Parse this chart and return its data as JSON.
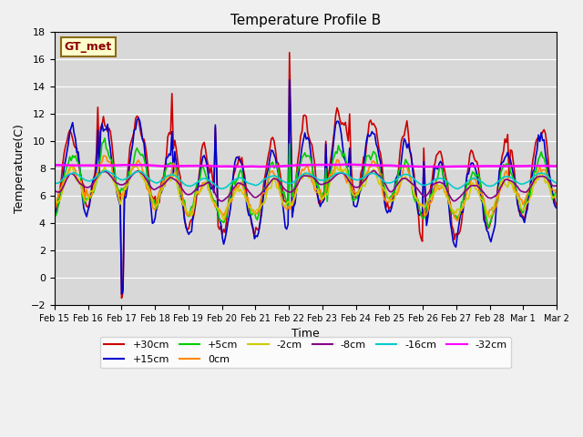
{
  "title": "Temperature Profile B",
  "xlabel": "Time",
  "ylabel": "Temperature(C)",
  "ylim": [
    -2,
    18
  ],
  "annotation": "GT_met",
  "background_color": "#d8d8d8",
  "grid_color": "#ffffff",
  "series": [
    {
      "label": "+30cm",
      "color": "#cc0000",
      "lw": 1.2
    },
    {
      "label": "+15cm",
      "color": "#0000cc",
      "lw": 1.2
    },
    {
      "label": "+5cm",
      "color": "#00cc00",
      "lw": 1.2
    },
    {
      "label": "0cm",
      "color": "#ff8800",
      "lw": 1.2
    },
    {
      "label": "-2cm",
      "color": "#cccc00",
      "lw": 1.2
    },
    {
      "label": "-8cm",
      "color": "#880088",
      "lw": 1.2
    },
    {
      "label": "-16cm",
      "color": "#00cccc",
      "lw": 1.2
    },
    {
      "label": "-32cm",
      "color": "#ff00ff",
      "lw": 1.8
    }
  ],
  "xtick_labels": [
    "Feb 15",
    "Feb 16",
    "Feb 17",
    "Feb 18",
    "Feb 19",
    "Feb 20",
    "Feb 21",
    "Feb 22",
    "Feb 23",
    "Feb 24",
    "Feb 25",
    "Feb 26",
    "Feb 27",
    "Feb 28",
    "Mar 1",
    "Mar 2"
  ],
  "n_days": 15,
  "legend_ncol": 6
}
